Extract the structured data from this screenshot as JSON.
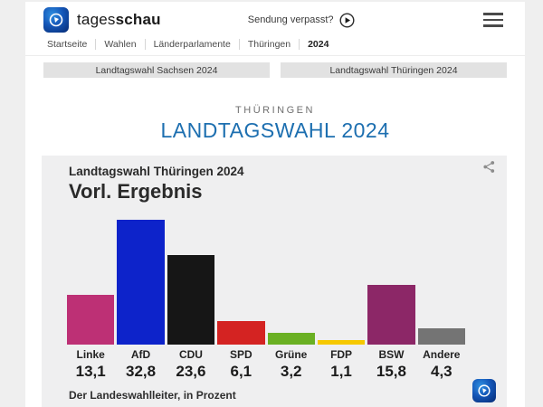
{
  "header": {
    "logo_text_regular": "tages",
    "logo_text_bold": "schau",
    "broadcast_link": "Sendung verpasst?",
    "breadcrumb": [
      "Startseite",
      "Wahlen",
      "Länderparlamente",
      "Thüringen",
      "2024"
    ]
  },
  "tabs": [
    {
      "label": "Landtagswahl Sachsen 2024"
    },
    {
      "label": "Landtagswahl Thüringen 2024"
    }
  ],
  "page": {
    "kicker": "THÜRINGEN",
    "title": "LANDTAGSWAHL 2024"
  },
  "chart_data": {
    "type": "bar",
    "title": "Landtagswahl Thüringen 2024",
    "subtitle": "Vorl. Ergebnis",
    "categories": [
      "Linke",
      "AfD",
      "CDU",
      "SPD",
      "Grüne",
      "FDP",
      "BSW",
      "Andere"
    ],
    "values": [
      13.1,
      32.8,
      23.6,
      6.1,
      3.2,
      1.1,
      15.8,
      4.3
    ],
    "value_labels": [
      "13,1",
      "32,8",
      "23,6",
      "6,1",
      "3,2",
      "1,1",
      "15,8",
      "4,3"
    ],
    "colors": [
      "#bd3075",
      "#0d23ca",
      "#161616",
      "#d42322",
      "#6ab023",
      "#f6c800",
      "#8c2767",
      "#747474"
    ],
    "ylim": [
      0,
      35
    ],
    "unit": "Prozent",
    "source": "Der Landeswahlleiter, in Prozent",
    "legend": "none",
    "grid": false
  },
  "colors": {
    "accent_blue": "#1d6fb0",
    "panel_bg": "#efeff0",
    "outer_bg": "#efefef"
  }
}
